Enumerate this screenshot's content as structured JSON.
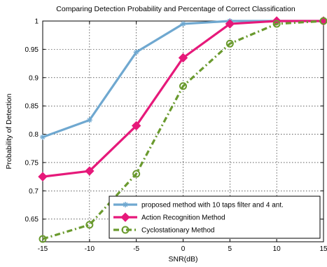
{
  "chart_data": {
    "type": "line",
    "title": "Comparing Detection Probability and Percentage of Correct Classification",
    "xlabel": "SNR(dB)",
    "ylabel": "Probability of Detection",
    "x": [
      -15,
      -10,
      -5,
      0,
      5,
      10,
      15
    ],
    "xlim": [
      -15,
      15
    ],
    "ylim": [
      0.61,
      1.0
    ],
    "xticks": [
      "-15",
      "-10",
      "-5",
      "0",
      "5",
      "10",
      "15"
    ],
    "yticks": [
      "0.65",
      "0.7",
      "0.75",
      "0.8",
      "0.85",
      "0.9",
      "0.95",
      "1"
    ],
    "grid": true,
    "legend_position": "bottom-right",
    "series": [
      {
        "name": "proposed method with 10 taps filter and 4 ant.",
        "values": [
          0.795,
          0.825,
          0.945,
          0.995,
          1.0,
          1.0,
          1.0
        ],
        "color": "#6fa8d0",
        "marker": "star",
        "linestyle": "solid"
      },
      {
        "name": "Action Recognition Method",
        "values": [
          0.725,
          0.735,
          0.815,
          0.935,
          0.995,
          1.0,
          1.0
        ],
        "color": "#e6197a",
        "marker": "diamond",
        "linestyle": "solid"
      },
      {
        "name": "Cyclostationary Method",
        "values": [
          0.615,
          0.64,
          0.73,
          0.885,
          0.96,
          0.995,
          1.0
        ],
        "color": "#6a9a2e",
        "marker": "circle",
        "linestyle": "dashdot"
      }
    ]
  }
}
